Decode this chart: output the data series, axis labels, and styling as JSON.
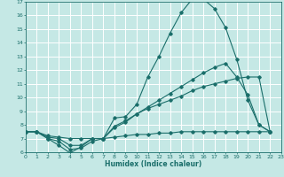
{
  "xlabel": "Humidex (Indice chaleur)",
  "xlim": [
    0,
    23
  ],
  "ylim": [
    6,
    17
  ],
  "xticks": [
    0,
    1,
    2,
    3,
    4,
    5,
    6,
    7,
    8,
    9,
    10,
    11,
    12,
    13,
    14,
    15,
    16,
    17,
    18,
    19,
    20,
    21,
    22,
    23
  ],
  "yticks": [
    6,
    7,
    8,
    9,
    10,
    11,
    12,
    13,
    14,
    15,
    16,
    17
  ],
  "bg_color": "#c5e8e5",
  "line_color": "#1a6e6a",
  "grid_color": "#ffffff",
  "lines": [
    {
      "x": [
        0,
        1,
        2,
        3,
        4,
        5,
        6,
        7,
        8,
        9,
        10,
        11,
        12,
        13,
        14,
        15,
        16,
        17,
        18,
        19,
        20,
        21,
        22
      ],
      "y": [
        7.5,
        7.5,
        7.0,
        6.5,
        5.95,
        6.4,
        7.0,
        7.0,
        8.5,
        8.6,
        9.5,
        11.5,
        13.0,
        14.7,
        16.2,
        17.2,
        17.2,
        16.5,
        15.1,
        12.8,
        9.8,
        8.0,
        7.5
      ]
    },
    {
      "x": [
        0,
        1,
        2,
        3,
        4,
        5,
        6,
        7,
        8,
        9,
        10,
        11,
        12,
        13,
        14,
        15,
        16,
        17,
        18,
        19,
        20,
        21,
        22
      ],
      "y": [
        7.5,
        7.5,
        7.0,
        6.8,
        6.2,
        6.3,
        6.8,
        7.0,
        7.8,
        8.2,
        8.8,
        9.3,
        9.8,
        10.3,
        10.8,
        11.3,
        11.8,
        12.2,
        12.5,
        11.5,
        10.2,
        8.0,
        7.5
      ]
    },
    {
      "x": [
        0,
        1,
        2,
        3,
        4,
        5,
        6,
        7,
        8,
        9,
        10,
        11,
        12,
        13,
        14,
        15,
        16,
        17,
        18,
        19,
        20,
        21,
        22
      ],
      "y": [
        7.5,
        7.5,
        7.1,
        7.0,
        6.5,
        6.5,
        7.0,
        7.0,
        7.9,
        8.3,
        8.8,
        9.2,
        9.5,
        9.8,
        10.1,
        10.5,
        10.8,
        11.0,
        11.2,
        11.4,
        11.5,
        11.5,
        7.5
      ]
    },
    {
      "x": [
        0,
        1,
        2,
        3,
        4,
        5,
        6,
        7,
        8,
        9,
        10,
        11,
        12,
        13,
        14,
        15,
        16,
        17,
        18,
        19,
        20,
        21,
        22
      ],
      "y": [
        7.5,
        7.5,
        7.2,
        7.1,
        7.0,
        7.0,
        7.0,
        7.0,
        7.1,
        7.2,
        7.3,
        7.3,
        7.4,
        7.4,
        7.5,
        7.5,
        7.5,
        7.5,
        7.5,
        7.5,
        7.5,
        7.5,
        7.5
      ]
    }
  ]
}
